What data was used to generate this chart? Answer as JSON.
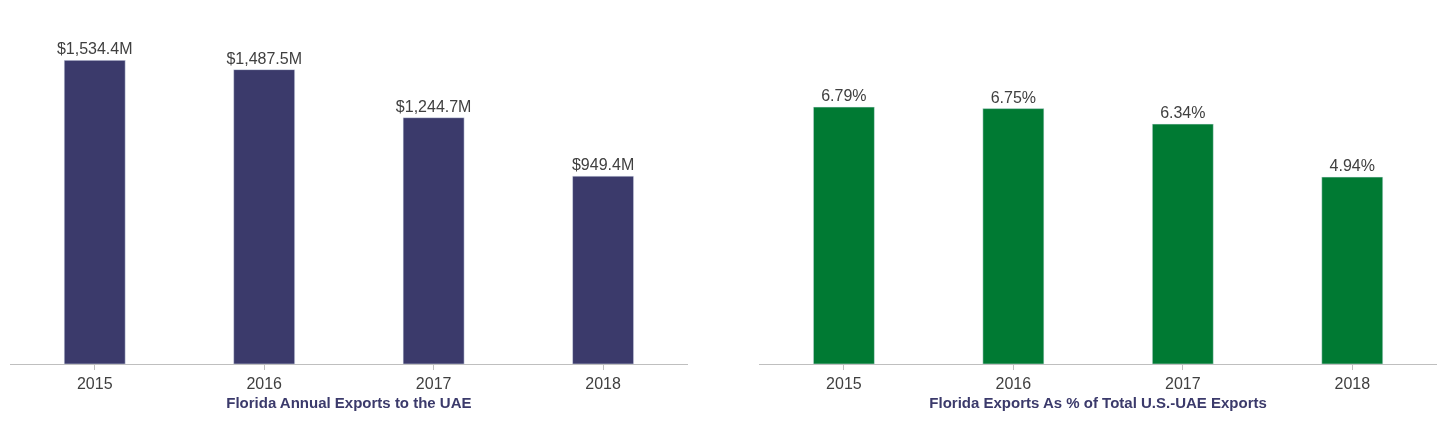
{
  "chart_data": [
    {
      "type": "bar",
      "xlabel": "Florida Annual Exports to the UAE",
      "categories": [
        "2015",
        "2016",
        "2017",
        "2018"
      ],
      "values": [
        1534.4,
        1487.5,
        1244.7,
        949.4
      ],
      "value_labels": [
        "$1,534.4M",
        "$1,487.5M",
        "$1,244.7M",
        "$949.4M"
      ],
      "color": "#3b3a6b",
      "tick_labels": "x"
    },
    {
      "type": "bar",
      "xlabel": "Florida Exports As % of Total U.S.-UAE Exports",
      "categories": [
        "2015",
        "2016",
        "2017",
        "2018"
      ],
      "values": [
        6.79,
        6.75,
        6.34,
        4.94
      ],
      "value_labels": [
        "6.79%",
        "6.75%",
        "6.34%",
        "4.94%"
      ],
      "color": "#007a33",
      "tick_labels": "x"
    }
  ]
}
